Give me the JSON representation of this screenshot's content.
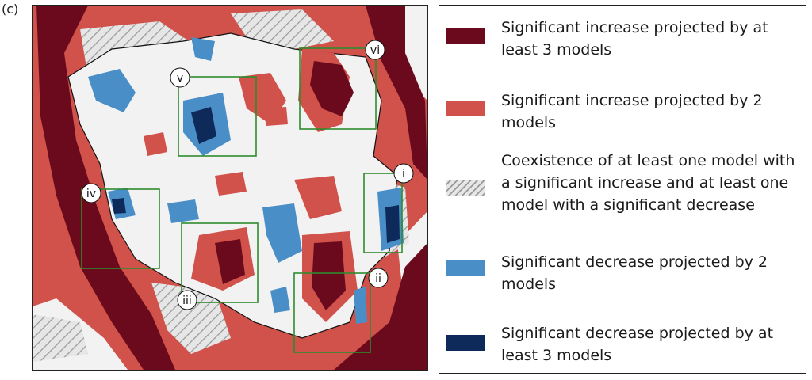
{
  "panel_label": "(c)",
  "colors": {
    "strong_increase": "#6b0a1d",
    "increase": "#d0524a",
    "mixed_hatch": "#9a9a9a",
    "decrease": "#4a8ec8",
    "strong_decrease": "#0e2a5a",
    "background": "#f2f2f2",
    "roi_box": "#2e8b2e"
  },
  "regions": [
    {
      "id": "i",
      "label": "i"
    },
    {
      "id": "ii",
      "label": "ii"
    },
    {
      "id": "iii",
      "label": "iii"
    },
    {
      "id": "iv",
      "label": "iv"
    },
    {
      "id": "v",
      "label": "v"
    },
    {
      "id": "vi",
      "label": "vi"
    }
  ],
  "legend": [
    {
      "key": "strong_increase",
      "text": "Significant increase projected by at least 3 models"
    },
    {
      "key": "increase",
      "text": "Significant increase projected by 2 models"
    },
    {
      "key": "mixed_hatch",
      "text": "Coexistence of at least one model with a significant increase and at least one model  with a significant decrease"
    },
    {
      "key": "decrease",
      "text": "Significant decrease projected by 2 models"
    },
    {
      "key": "strong_decrease",
      "text": "Significant decrease projected by at least 3 models"
    }
  ]
}
